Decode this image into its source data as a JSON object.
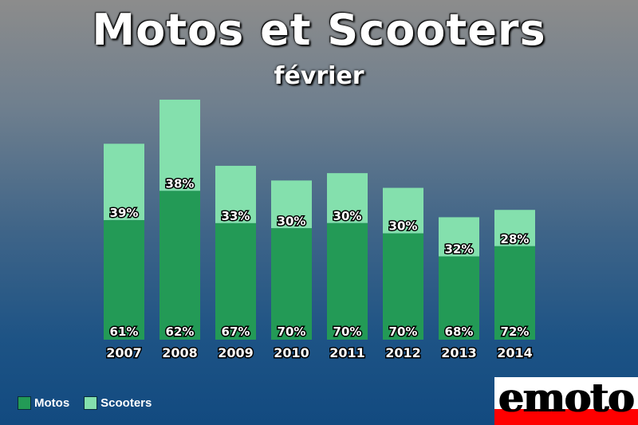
{
  "chart_data": {
    "type": "bar",
    "stacked": true,
    "title": "Motos et Scooters",
    "subtitle": "février",
    "categories": [
      "2007",
      "2008",
      "2009",
      "2010",
      "2011",
      "2012",
      "2013",
      "2014"
    ],
    "series": [
      {
        "name": "Motos",
        "color": "#239a56",
        "values": [
          61,
          62,
          67,
          70,
          70,
          70,
          68,
          72
        ]
      },
      {
        "name": "Scooters",
        "color": "#84e0ad",
        "values": [
          39,
          38,
          33,
          30,
          30,
          30,
          32,
          28
        ]
      }
    ],
    "labels": {
      "Motos": [
        "61%",
        "62%",
        "67%",
        "70%",
        "70%",
        "70%",
        "68%",
        "72%"
      ],
      "Scooters": [
        "39%",
        "38%",
        "33%",
        "30%",
        "30%",
        "30%",
        "32%",
        "28%"
      ]
    },
    "relative_totals": [
      80,
      98,
      71,
      65,
      68,
      62,
      50,
      53
    ],
    "grid": false,
    "legend_position": "bottom-left"
  },
  "logo": {
    "text": "emoto"
  }
}
